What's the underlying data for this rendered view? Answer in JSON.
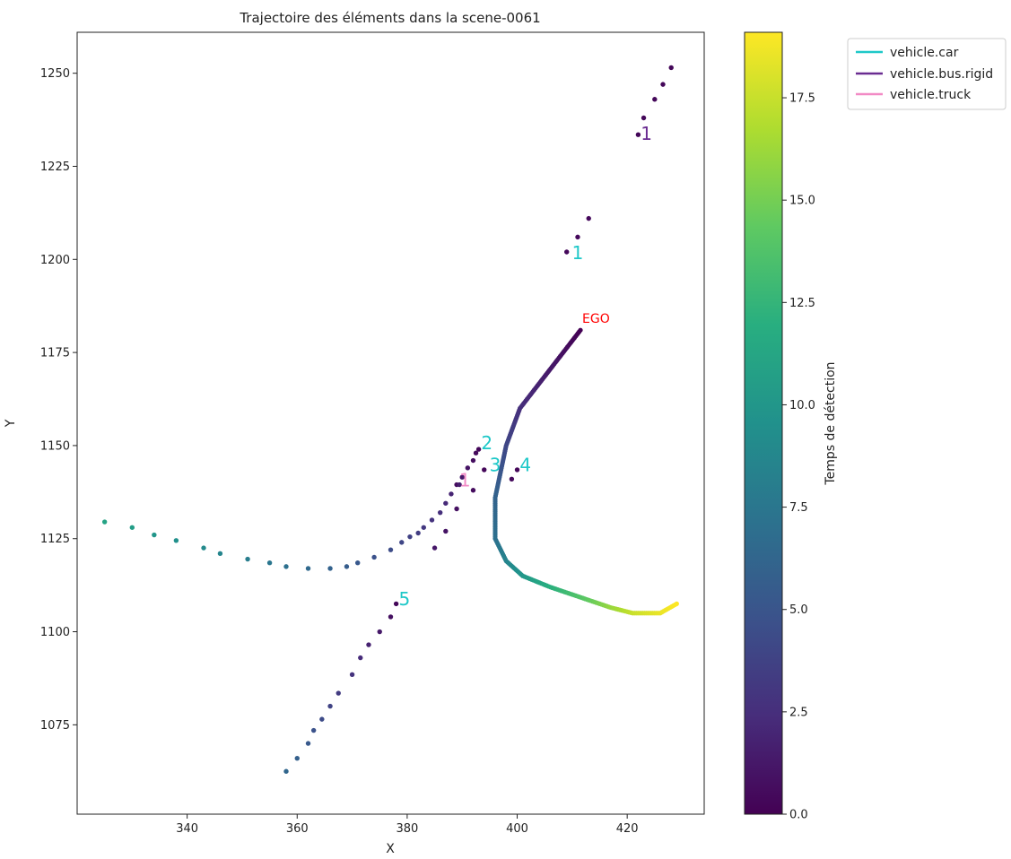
{
  "chart_data": {
    "type": "scatter",
    "title": "Trajectoire des éléments dans la scene-0061",
    "xlabel": "X",
    "ylabel": "Y",
    "xlim": [
      320,
      434
    ],
    "ylim": [
      1051,
      1261
    ],
    "xticks": [
      340,
      360,
      380,
      400,
      420
    ],
    "yticks": [
      1075,
      1100,
      1125,
      1150,
      1175,
      1200,
      1225,
      1250
    ],
    "grid": false,
    "legend_position": "outside-top-right",
    "legend": [
      {
        "label": "vehicle.car",
        "color": "#1ec8c8"
      },
      {
        "label": "vehicle.bus.rigid",
        "color": "#6a2c91"
      },
      {
        "label": "vehicle.truck",
        "color": "#f28ac5"
      }
    ],
    "colorbar": {
      "label": "Temps de détection",
      "colormap": "viridis",
      "range": [
        0,
        19.1
      ],
      "ticks": [
        0.0,
        2.5,
        5.0,
        7.5,
        10.0,
        12.5,
        15.0,
        17.5
      ],
      "tick_labels": [
        "0.0",
        "2.5",
        "5.0",
        "7.5",
        "10.0",
        "12.5",
        "15.0",
        "17.5"
      ]
    },
    "ego": {
      "label": "EGO",
      "label_color": "#ff0000",
      "keypoints": [
        {
          "t": 0.0,
          "x": 411.5,
          "y": 1181
        },
        {
          "t": 2.5,
          "x": 400.5,
          "y": 1160
        },
        {
          "t": 4.0,
          "x": 398.0,
          "y": 1150
        },
        {
          "t": 6.0,
          "x": 396.0,
          "y": 1136
        },
        {
          "t": 7.0,
          "x": 396.0,
          "y": 1125
        },
        {
          "t": 8.5,
          "x": 398.0,
          "y": 1119
        },
        {
          "t": 10.0,
          "x": 401.0,
          "y": 1115
        },
        {
          "t": 12.0,
          "x": 406.0,
          "y": 1112
        },
        {
          "t": 14.0,
          "x": 412.0,
          "y": 1109
        },
        {
          "t": 16.0,
          "x": 417.0,
          "y": 1106.5
        },
        {
          "t": 17.5,
          "x": 421.0,
          "y": 1105
        },
        {
          "t": 18.5,
          "x": 426.0,
          "y": 1105
        },
        {
          "t": 19.1,
          "x": 429.0,
          "y": 1107.5
        }
      ]
    },
    "tracks": [
      {
        "id": "1",
        "category": "vehicle.bus.rigid",
        "label": {
          "x": 423.5,
          "y": 1234
        },
        "points": [
          [
            422.0,
            1233.5,
            0.3
          ],
          [
            423.0,
            1238.0,
            0.3
          ],
          [
            425.0,
            1243.0,
            0.3
          ],
          [
            426.5,
            1247.0,
            0.3
          ],
          [
            428.0,
            1251.5,
            0.3
          ]
        ]
      },
      {
        "id": "1",
        "category": "vehicle.car",
        "label": {
          "x": 411.0,
          "y": 1202
        },
        "points": [
          [
            409.0,
            1202.0,
            0.4
          ],
          [
            411.0,
            1206.0,
            0.4
          ],
          [
            413.0,
            1211.0,
            0.4
          ]
        ]
      },
      {
        "id": "1",
        "category": "vehicle.truck",
        "label": {
          "x": 390.5,
          "y": 1141
        },
        "points": [
          [
            389.0,
            1139.5,
            0.6
          ],
          [
            392.0,
            1138.0,
            0.6
          ],
          [
            389.0,
            1133.0,
            0.8
          ],
          [
            387.0,
            1127.0,
            1.0
          ],
          [
            385.0,
            1122.5,
            1.2
          ]
        ]
      },
      {
        "id": "2",
        "category": "vehicle.car",
        "label": {
          "x": 394.5,
          "y": 1151
        },
        "points": [
          [
            393.0,
            1149.0,
            0.3
          ],
          [
            392.5,
            1148.0,
            0.5
          ],
          [
            392.0,
            1146.0,
            0.7
          ],
          [
            391.0,
            1144.0,
            1.0
          ],
          [
            390.0,
            1141.5,
            1.3
          ],
          [
            389.5,
            1139.5,
            1.6
          ],
          [
            388.0,
            1137.0,
            1.9
          ],
          [
            387.0,
            1134.5,
            2.2
          ],
          [
            386.0,
            1132.0,
            2.5
          ],
          [
            384.5,
            1130.0,
            2.8
          ],
          [
            383.0,
            1128.0,
            3.1
          ],
          [
            382.0,
            1126.5,
            3.4
          ],
          [
            380.5,
            1125.5,
            3.7
          ],
          [
            379.0,
            1124.0,
            4.0
          ],
          [
            377.0,
            1122.0,
            4.4
          ],
          [
            374.0,
            1120.0,
            4.8
          ],
          [
            371.0,
            1118.5,
            5.2
          ],
          [
            369.0,
            1117.5,
            5.6
          ],
          [
            366.0,
            1117.0,
            6.0
          ],
          [
            362.0,
            1117.0,
            6.5
          ],
          [
            358.0,
            1117.5,
            7.0
          ],
          [
            355.0,
            1118.5,
            7.5
          ],
          [
            351.0,
            1119.5,
            8.0
          ],
          [
            346.0,
            1121.0,
            8.6
          ],
          [
            343.0,
            1122.5,
            9.0
          ],
          [
            338.0,
            1124.5,
            9.5
          ],
          [
            334.0,
            1126.0,
            10.0
          ],
          [
            330.0,
            1128.0,
            10.5
          ],
          [
            325.0,
            1129.5,
            11.0
          ]
        ]
      },
      {
        "id": "3",
        "category": "vehicle.car",
        "label": {
          "x": 396.0,
          "y": 1145
        },
        "points": [
          [
            394.0,
            1143.5,
            0.3
          ]
        ]
      },
      {
        "id": "4",
        "category": "vehicle.car",
        "label": {
          "x": 401.5,
          "y": 1145
        },
        "points": [
          [
            400.0,
            1143.5,
            0.3
          ],
          [
            399.0,
            1141.0,
            0.5
          ]
        ]
      },
      {
        "id": "5",
        "category": "vehicle.car",
        "label": {
          "x": 379.5,
          "y": 1109
        },
        "points": [
          [
            378.0,
            1107.5,
            0.3
          ],
          [
            377.0,
            1104.0,
            0.8
          ],
          [
            375.0,
            1100.0,
            1.3
          ],
          [
            373.0,
            1096.5,
            1.8
          ],
          [
            371.5,
            1093.0,
            2.3
          ],
          [
            370.0,
            1088.5,
            2.8
          ],
          [
            367.5,
            1083.5,
            3.3
          ],
          [
            366.0,
            1080.0,
            3.8
          ],
          [
            364.5,
            1076.5,
            4.3
          ],
          [
            363.0,
            1073.5,
            4.8
          ],
          [
            362.0,
            1070.0,
            5.3
          ],
          [
            360.0,
            1066.0,
            5.8
          ],
          [
            358.0,
            1062.5,
            6.3
          ]
        ]
      }
    ]
  }
}
